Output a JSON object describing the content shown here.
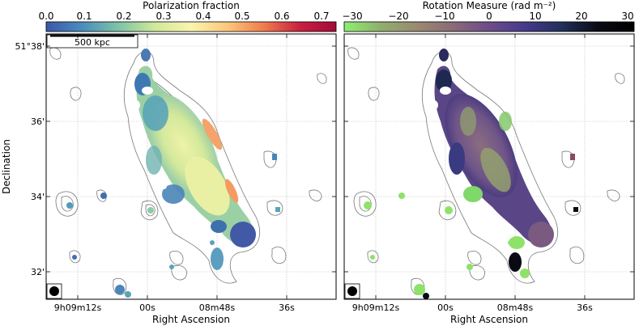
{
  "figure": {
    "y_axis_label": "Declination",
    "x_axis_label": "Right Ascension",
    "y_ticks": [
      "51°38'",
      "36'",
      "34'",
      "32'"
    ],
    "x_ticks": [
      "9h09m12s",
      "00s",
      "08m48s",
      "36s"
    ],
    "scalebar_label": "500 kpc"
  },
  "panels": [
    {
      "colorbar_title": "Polarization fraction",
      "colorbar_ticks": [
        "0.0",
        "0.1",
        "0.2",
        "0.3",
        "0.4",
        "0.5",
        "0.6",
        "0.7"
      ],
      "colormap": [
        "#3a57a8",
        "#4b8dbd",
        "#7ec3a6",
        "#cfe99a",
        "#fbf4ae",
        "#fbc77c",
        "#f07c4c",
        "#c8203f",
        "#a50b3a"
      ]
    },
    {
      "colorbar_title": "Rotation Measure (rad m⁻²)",
      "colorbar_ticks": [
        "−30",
        "−20",
        "−10",
        "0",
        "10",
        "20",
        "30"
      ],
      "colormap": [
        "#8cf070",
        "#8fae6e",
        "#9a8a70",
        "#8a6a78",
        "#6c4c88",
        "#463a8a",
        "#20305a",
        "#0a0a14",
        "#000000"
      ]
    }
  ]
}
